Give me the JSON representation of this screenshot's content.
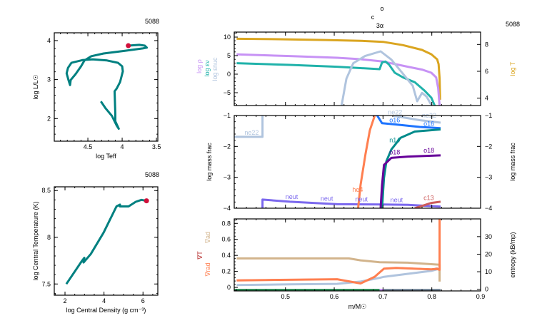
{
  "burn_markers": [
    "o",
    "c",
    "3α"
  ],
  "colors": {
    "track": "#008080",
    "marker": "#d0103a",
    "log_rho": "#c792f5",
    "log_eps_nu": "#20b2aa",
    "log_eps_nuc": "#b0c4de",
    "log_T": "#daa520",
    "grad_ad": "#d2b48c",
    "grad_T": "#b22222",
    "grad_rad": "#ff7f50",
    "entropy": "#b0c4de"
  },
  "chart_data": [
    {
      "id": "hr",
      "type": "line",
      "model_number": "5088",
      "xlabel": "log Teff",
      "ylabel": "log L/L☉",
      "xlim": [
        4.99,
        3.48
      ],
      "ylim": [
        1.42,
        4.2
      ],
      "xticks": [
        {
          "v": 4.5,
          "label": "4.5"
        },
        {
          "v": 4,
          "label": "4"
        },
        {
          "v": 3.5,
          "label": "3.5"
        }
      ],
      "yticks": [
        {
          "v": 2,
          "label": "2"
        },
        {
          "v": 3,
          "label": "3"
        },
        {
          "v": 4,
          "label": "4"
        }
      ],
      "series": [
        {
          "color": "#008080",
          "x": [
            4.31,
            4.24,
            4.15,
            4.08,
            4.05,
            4.1,
            4.1,
            4.11,
            4.08,
            4.03,
            3.99,
            4.0,
            4.06,
            4.22,
            4.43,
            4.58,
            4.74,
            4.79,
            4.81,
            4.78,
            4.76,
            4.75,
            4.68,
            4.6,
            4.55,
            4.45,
            4.27,
            3.96,
            3.7,
            3.64,
            3.67,
            3.75,
            3.91
          ],
          "y": [
            2.44,
            2.26,
            2.07,
            1.82,
            1.74,
            1.93,
            2.11,
            2.7,
            2.77,
            2.94,
            3.21,
            3.34,
            3.43,
            3.49,
            3.52,
            3.5,
            3.43,
            3.3,
            3.16,
            2.97,
            2.86,
            2.99,
            3.14,
            3.34,
            3.49,
            3.6,
            3.67,
            3.74,
            3.8,
            3.82,
            3.87,
            3.89,
            3.87
          ]
        }
      ],
      "current": {
        "x": 3.91,
        "y": 3.87,
        "color": "#d0103a"
      }
    },
    {
      "id": "center",
      "type": "line",
      "model_number": "5088",
      "xlabel": "log Central Density (g cm⁻³)",
      "ylabel": "log Central Temperature (K)",
      "xlim": [
        1.45,
        6.76
      ],
      "ylim": [
        7.38,
        8.54
      ],
      "xticks": [
        {
          "v": 2,
          "label": "2"
        },
        {
          "v": 4,
          "label": "4"
        },
        {
          "v": 6,
          "label": "6"
        }
      ],
      "yticks": [
        {
          "v": 7.5,
          "label": "7.5"
        },
        {
          "v": 8,
          "label": "8"
        },
        {
          "v": 8.5,
          "label": "8.5"
        }
      ],
      "series": [
        {
          "color": "#008080",
          "x": [
            2.07,
            2.88,
            2.99,
            2.95,
            3.32,
            3.98,
            4.64,
            4.82,
            4.82,
            5.26,
            5.63,
            5.92,
            6.18
          ],
          "y": [
            7.5,
            7.75,
            7.78,
            7.73,
            7.82,
            8.05,
            8.33,
            8.35,
            8.33,
            8.33,
            8.38,
            8.4,
            8.39
          ]
        }
      ],
      "current": {
        "x": 6.18,
        "y": 8.39,
        "color": "#d0103a"
      }
    },
    {
      "id": "profile_top",
      "type": "line",
      "model_number": "5088",
      "xlim": [
        0.395,
        0.9
      ],
      "ylim": [
        -8.46,
        11.35
      ],
      "y2lim": [
        3.45,
        8.92
      ],
      "yticks": [
        {
          "v": -5,
          "label": "−5"
        },
        {
          "v": 0,
          "label": "0"
        },
        {
          "v": 5,
          "label": "5"
        },
        {
          "v": 10,
          "label": "10"
        }
      ],
      "y2ticks": [
        {
          "v": 4,
          "label": "4"
        },
        {
          "v": 6,
          "label": "6"
        },
        {
          "v": 8,
          "label": "8"
        }
      ],
      "ylabels": [
        {
          "text": "log ρ",
          "color": "#c792f5"
        },
        {
          "text": "log εν",
          "color": "#20b2aa"
        },
        {
          "text": "log εnuc",
          "color": "#b0c4de"
        }
      ],
      "y2label": {
        "text": "log T",
        "color": "#daa520"
      },
      "series": [
        {
          "key": "log_T",
          "axis": "y2",
          "color": "#daa520",
          "x": [
            0.4,
            0.485,
            0.582,
            0.654,
            0.7,
            0.741,
            0.78,
            0.799,
            0.811,
            0.814,
            0.816,
            0.817
          ],
          "y": [
            8.42,
            8.39,
            8.33,
            8.27,
            8.19,
            7.95,
            7.59,
            7.27,
            6.89,
            6.53,
            5.47,
            3.88
          ]
        },
        {
          "key": "log_rho",
          "axis": "y",
          "color": "#c792f5",
          "x": [
            0.4,
            0.509,
            0.606,
            0.654,
            0.7,
            0.751,
            0.78,
            0.799,
            0.809,
            0.813,
            0.816
          ],
          "y": [
            5.33,
            4.88,
            4.42,
            4.04,
            3.4,
            2.0,
            1.23,
            0.38,
            -0.88,
            -3.77,
            -8.5
          ]
        },
        {
          "key": "log_eps_nu",
          "axis": "y",
          "color": "#20b2aa",
          "x": [
            0.4,
            0.509,
            0.606,
            0.693,
            0.698,
            0.705,
            0.712,
            0.724,
            0.741,
            0.765,
            0.785,
            0.799,
            0.806
          ],
          "y": [
            2.96,
            2.5,
            2.0,
            1.35,
            3.15,
            3.4,
            2.63,
            0.38,
            -0.88,
            -2.17,
            -4.42,
            -6.35,
            -8.5
          ]
        },
        {
          "key": "log_eps_nuc",
          "axis": "y",
          "color": "#b0c4de",
          "x": [
            0.615,
            0.625,
            0.639,
            0.663,
            0.695,
            0.717,
            0.741,
            0.761,
            0.77,
            0.78,
            0.789,
            0.799
          ],
          "y": [
            -8.5,
            -1.21,
            2.96,
            4.88,
            6.15,
            3.92,
            0.08,
            -3.13,
            -7.3,
            -5.06,
            -6.02,
            -8.27
          ]
        }
      ]
    },
    {
      "id": "profile_mid",
      "type": "line",
      "xlim": [
        0.395,
        0.9
      ],
      "ylim": [
        -4,
        -1
      ],
      "y2lim": [
        -4,
        -1
      ],
      "yticks": [
        {
          "v": -4,
          "label": "−4"
        },
        {
          "v": -3,
          "label": "−3"
        },
        {
          "v": -2,
          "label": "−2"
        },
        {
          "v": -1,
          "label": "−1"
        }
      ],
      "y2ticks": [
        {
          "v": -4,
          "label": "−4"
        },
        {
          "v": -3,
          "label": "−3"
        },
        {
          "v": -2,
          "label": "−2"
        },
        {
          "v": -1,
          "label": "−1"
        }
      ],
      "ylabel": "log mass frac",
      "y2label": "log mass frac",
      "series": [
        {
          "name": "neut",
          "color": "#7b68ee",
          "x": [
            0.453,
            0.453,
            0.509,
            0.606,
            0.698,
            0.751,
            0.818
          ],
          "y": [
            -4,
            -3.72,
            -3.79,
            -3.87,
            -3.88,
            -3.89,
            -3.95
          ]
        },
        {
          "name": "ne22",
          "color": "#b0c4de",
          "x": [
            0.395,
            0.453,
            0.453
          ],
          "y": [
            -1.69,
            -1.69,
            -1.0
          ]
        },
        {
          "name": "ne22",
          "color": "#b0c4de",
          "x": [
            0.722,
            0.775,
            0.818
          ],
          "y": [
            -1.01,
            -1.15,
            -1.23
          ]
        },
        {
          "name": "he4",
          "color": "#ff7f50",
          "x": [
            0.649,
            0.654,
            0.664,
            0.673,
            0.683
          ],
          "y": [
            -4.0,
            -3.25,
            -2.25,
            -1.48,
            -1.0
          ]
        },
        {
          "name": "o16",
          "color": "#1e74ff",
          "x": [
            0.688,
            0.698,
            0.727,
            0.775,
            0.818
          ],
          "y": [
            -1.0,
            -1.25,
            -1.29,
            -1.37,
            -1.41
          ]
        },
        {
          "name": "n14",
          "color": "#008b8b",
          "x": [
            0.698,
            0.702,
            0.707,
            0.717,
            0.736,
            0.765,
            0.818
          ],
          "y": [
            -4,
            -3.02,
            -2.48,
            -2.1,
            -1.72,
            -1.52,
            -1.45
          ]
        },
        {
          "name": "o18",
          "color": "#660099",
          "x": [
            0.695,
            0.698,
            0.702,
            0.717,
            0.751,
            0.818
          ],
          "y": [
            -4,
            -3.25,
            -2.6,
            -2.37,
            -2.33,
            -2.29
          ]
        },
        {
          "name": "c13",
          "color": "#cd5c5c",
          "x": [
            0.765,
            0.799,
            0.818
          ],
          "y": [
            -4,
            -3.83,
            -3.79
          ]
        }
      ],
      "labels": [
        {
          "text": "ne22",
          "color": "#b0c4de",
          "x": 0.416,
          "y": -1.62
        },
        {
          "text": "ne22",
          "color": "#b0c4de",
          "x": 0.71,
          "y": -0.97
        },
        {
          "text": "ne22",
          "color": "#b0c4de",
          "x": 0.78,
          "y": -1.07
        },
        {
          "text": "o16",
          "color": "#1e74ff",
          "x": 0.713,
          "y": -1.22
        },
        {
          "text": "o16",
          "color": "#1e74ff",
          "x": 0.783,
          "y": -1.33
        },
        {
          "text": "n14",
          "color": "#008b8b",
          "x": 0.713,
          "y": -1.86
        },
        {
          "text": "o18",
          "color": "#660099",
          "x": 0.713,
          "y": -2.26
        },
        {
          "text": "o18",
          "color": "#660099",
          "x": 0.783,
          "y": -2.2
        },
        {
          "text": "he4",
          "color": "#ff7f50",
          "x": 0.637,
          "y": -3.47
        },
        {
          "text": "neut",
          "color": "#7b68ee",
          "x": 0.5,
          "y": -3.7
        },
        {
          "text": "neut",
          "color": "#7b68ee",
          "x": 0.572,
          "y": -3.76
        },
        {
          "text": "neut",
          "color": "#7b68ee",
          "x": 0.643,
          "y": -3.78
        },
        {
          "text": "neut",
          "color": "#7b68ee",
          "x": 0.715,
          "y": -3.8
        },
        {
          "text": "c13",
          "color": "#cd5c5c",
          "x": 0.783,
          "y": -3.73
        }
      ]
    },
    {
      "id": "profile_bot",
      "type": "line",
      "xlabel": "m/M☉",
      "xlim": [
        0.395,
        0.9
      ],
      "ylim": [
        -0.044,
        0.856
      ],
      "y2lim": [
        -0.93,
        40.1
      ],
      "xticks": [
        {
          "v": 0.5,
          "label": "0.5"
        },
        {
          "v": 0.6,
          "label": "0.6"
        },
        {
          "v": 0.7,
          "label": "0.7"
        },
        {
          "v": 0.8,
          "label": "0.8"
        },
        {
          "v": 0.9,
          "label": "0.9"
        }
      ],
      "yticks": [
        {
          "v": 0,
          "label": "0"
        },
        {
          "v": 0.2,
          "label": "0.2"
        },
        {
          "v": 0.4,
          "label": "0.4"
        },
        {
          "v": 0.6,
          "label": "0.6"
        },
        {
          "v": 0.8,
          "label": "0.8"
        }
      ],
      "y2ticks": [
        {
          "v": 0,
          "label": "0"
        },
        {
          "v": 10,
          "label": "10"
        },
        {
          "v": 20,
          "label": "20"
        },
        {
          "v": 30,
          "label": "30"
        }
      ],
      "ylabels": [
        {
          "text": "∇ad",
          "color": "#d2b48c"
        },
        {
          "text": "∇T",
          "color": "#b22222"
        },
        {
          "text": "∇rad",
          "color": "#ff7f50"
        }
      ],
      "y2label": {
        "text": "entropy (kB/mp)",
        "color": "#000000"
      },
      "series": [
        {
          "key": "entropy",
          "axis": "y2",
          "color": "#b0c4de",
          "x": [
            0.4,
            0.509,
            0.606,
            0.654,
            0.693,
            0.702,
            0.751,
            0.799,
            0.816
          ],
          "y": [
            2.4,
            2.8,
            3.1,
            4.4,
            6.5,
            7.1,
            8.8,
            10.5,
            11.8
          ]
        },
        {
          "key": "grad_ad",
          "axis": "y",
          "color": "#d2b48c",
          "x": [
            0.4,
            0.63,
            0.654,
            0.693,
            0.751,
            0.813,
            0.816,
            0.816
          ],
          "y": [
            0.362,
            0.362,
            0.338,
            0.314,
            0.309,
            0.285,
            0.285,
            0.073
          ]
        },
        {
          "key": "grad_T",
          "axis": "y",
          "color": "#b22222",
          "x": [
            0.4,
            0.606,
            0.654,
            0.683,
            0.702,
            0.727,
            0.799,
            0.811,
            0.816
          ],
          "y": [
            0.092,
            0.106,
            0.05,
            0.133,
            0.238,
            0.247,
            0.23,
            0.24,
            0.22
          ]
        },
        {
          "key": "grad_rad",
          "axis": "y",
          "color": "#ff7f50",
          "x": [
            0.4,
            0.606,
            0.654,
            0.683,
            0.702,
            0.727,
            0.799,
            0.811,
            0.816,
            0.816
          ],
          "y": [
            0.088,
            0.102,
            0.05,
            0.133,
            0.235,
            0.244,
            0.226,
            0.23,
            0.22,
            0.856
          ]
        }
      ],
      "mixing_bar": [
        {
          "from": 0.395,
          "to": 0.693,
          "color": "#2e8b57"
        },
        {
          "from": 0.693,
          "to": 0.702,
          "color": "#c792f5"
        },
        {
          "from": 0.702,
          "to": 0.818,
          "color": "#778899"
        }
      ]
    }
  ]
}
